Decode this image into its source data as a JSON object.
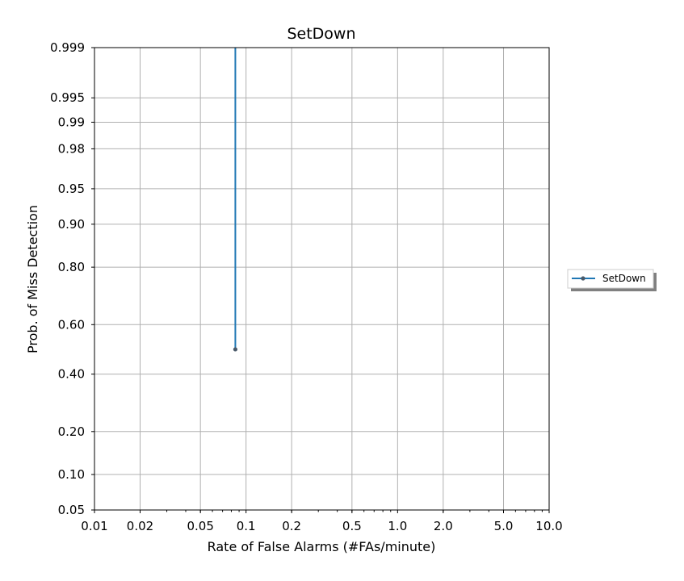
{
  "chart_data": {
    "type": "line",
    "title": "SetDown",
    "xlabel": "Rate of False Alarms (#FAs/minute)",
    "ylabel": "Prob. of Miss Detection",
    "x_scale": "log",
    "y_scale": "probit",
    "xlim": [
      0.01,
      10.0
    ],
    "ylim": [
      0.05,
      0.999
    ],
    "x_ticks": [
      {
        "value": 0.01,
        "label": "0.01"
      },
      {
        "value": 0.02,
        "label": "0.02"
      },
      {
        "value": 0.05,
        "label": "0.05"
      },
      {
        "value": 0.1,
        "label": "0.1"
      },
      {
        "value": 0.2,
        "label": "0.2"
      },
      {
        "value": 0.5,
        "label": "0.5"
      },
      {
        "value": 1.0,
        "label": "1.0"
      },
      {
        "value": 2.0,
        "label": "2.0"
      },
      {
        "value": 5.0,
        "label": "5.0"
      },
      {
        "value": 10.0,
        "label": "10.0"
      }
    ],
    "y_ticks": [
      {
        "value": 0.05,
        "label": "0.05"
      },
      {
        "value": 0.1,
        "label": "0.10"
      },
      {
        "value": 0.2,
        "label": "0.20"
      },
      {
        "value": 0.4,
        "label": "0.40"
      },
      {
        "value": 0.6,
        "label": "0.60"
      },
      {
        "value": 0.8,
        "label": "0.80"
      },
      {
        "value": 0.9,
        "label": "0.90"
      },
      {
        "value": 0.95,
        "label": "0.95"
      },
      {
        "value": 0.98,
        "label": "0.98"
      },
      {
        "value": 0.99,
        "label": "0.99"
      },
      {
        "value": 0.995,
        "label": "0.995"
      },
      {
        "value": 0.999,
        "label": "0.999"
      }
    ],
    "grid": true,
    "legend_position": "right",
    "series": [
      {
        "name": "SetDown",
        "color": "#1f77b4",
        "marker_color": "#4a5a6a",
        "marker": "point",
        "x": [
          0.085,
          0.085
        ],
        "y": [
          0.999,
          0.5
        ]
      }
    ]
  }
}
